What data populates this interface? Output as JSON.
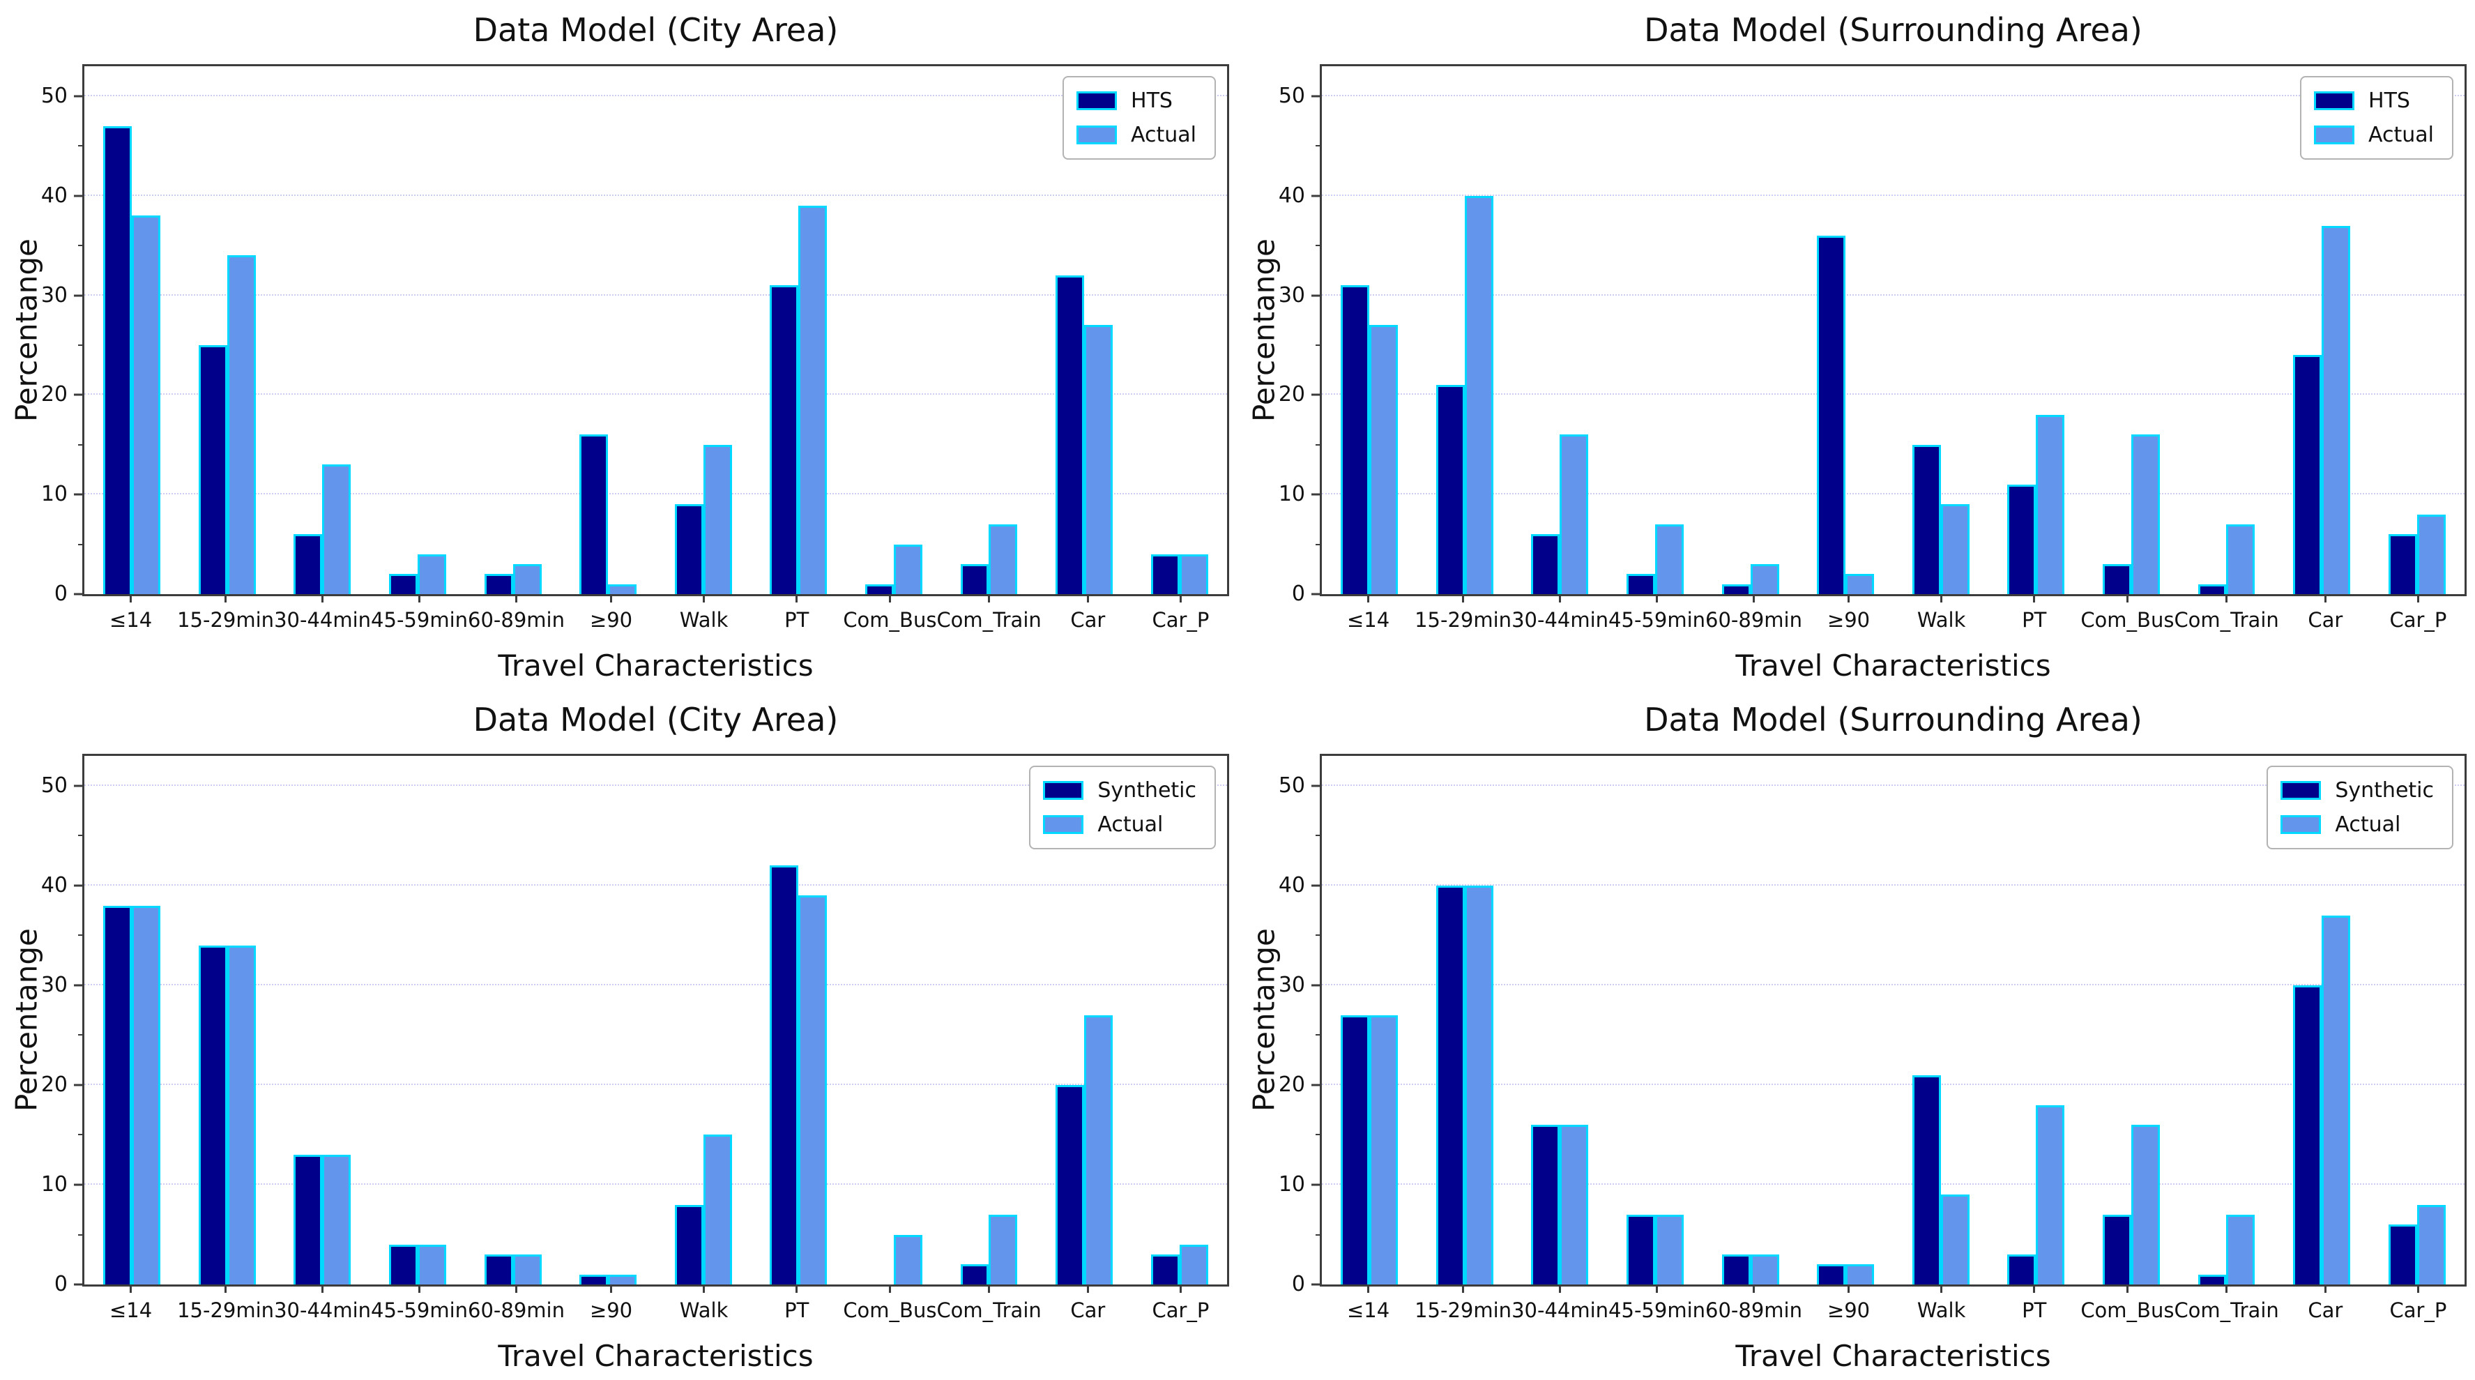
{
  "figure": {
    "background": "#ffffff",
    "bar_edge_color": "#00d9ff",
    "gridline_color": "#cdcdf2",
    "series_colors": {
      "dark": "#00008b",
      "light": "#6495ed"
    }
  },
  "chart_data": [
    {
      "type": "bar",
      "title": "Data Model (City Area)",
      "xlabel": "Travel Characteristics",
      "ylabel": "Percentange",
      "ylim": [
        0,
        53
      ],
      "yticks": [
        0,
        10,
        20,
        30,
        40,
        50
      ],
      "grid": "horizontal-dotted",
      "legend_position": "upper-right",
      "categories": [
        "≤14",
        "15-29min",
        "30-44min",
        "45-59min",
        "60-89min",
        "≥90",
        "Walk",
        "PT",
        "Com_Bus",
        "Com_Train",
        "Car",
        "Car_P"
      ],
      "series": [
        {
          "name": "HTS",
          "color": "#00008b",
          "values": [
            47,
            25,
            6,
            2,
            2,
            16,
            9,
            31,
            1,
            3,
            32,
            4
          ]
        },
        {
          "name": "Actual",
          "color": "#6495ed",
          "values": [
            38,
            34,
            13,
            4,
            3,
            1,
            15,
            39,
            5,
            7,
            27,
            4
          ]
        }
      ]
    },
    {
      "type": "bar",
      "title": "Data Model (Surrounding Area)",
      "xlabel": "Travel Characteristics",
      "ylabel": "Percentange",
      "ylim": [
        0,
        53
      ],
      "yticks": [
        0,
        10,
        20,
        30,
        40,
        50
      ],
      "grid": "horizontal-dotted",
      "legend_position": "upper-right",
      "categories": [
        "≤14",
        "15-29min",
        "30-44min",
        "45-59min",
        "60-89min",
        "≥90",
        "Walk",
        "PT",
        "Com_Bus",
        "Com_Train",
        "Car",
        "Car_P"
      ],
      "series": [
        {
          "name": "HTS",
          "color": "#00008b",
          "values": [
            31,
            21,
            6,
            2,
            1,
            36,
            15,
            11,
            3,
            1,
            24,
            6
          ]
        },
        {
          "name": "Actual",
          "color": "#6495ed",
          "values": [
            27,
            40,
            16,
            7,
            3,
            2,
            9,
            18,
            16,
            7,
            37,
            8
          ]
        }
      ]
    },
    {
      "type": "bar",
      "title": "Data Model (City Area)",
      "xlabel": "Travel Characteristics",
      "ylabel": "Percentange",
      "ylim": [
        0,
        53
      ],
      "yticks": [
        0,
        10,
        20,
        30,
        40,
        50
      ],
      "grid": "horizontal-dotted",
      "legend_position": "upper-right",
      "categories": [
        "≤14",
        "15-29min",
        "30-44min",
        "45-59min",
        "60-89min",
        "≥90",
        "Walk",
        "PT",
        "Com_Bus",
        "Com_Train",
        "Car",
        "Car_P"
      ],
      "series": [
        {
          "name": "Synthetic",
          "color": "#00008b",
          "values": [
            38,
            34,
            13,
            4,
            3,
            1,
            8,
            42,
            0,
            2,
            20,
            3
          ]
        },
        {
          "name": "Actual",
          "color": "#6495ed",
          "values": [
            38,
            34,
            13,
            4,
            3,
            1,
            15,
            39,
            5,
            7,
            27,
            4
          ]
        }
      ]
    },
    {
      "type": "bar",
      "title": "Data Model (Surrounding Area)",
      "xlabel": "Travel Characteristics",
      "ylabel": "Percentange",
      "ylim": [
        0,
        53
      ],
      "yticks": [
        0,
        10,
        20,
        30,
        40,
        50
      ],
      "grid": "horizontal-dotted",
      "legend_position": "upper-right",
      "categories": [
        "≤14",
        "15-29min",
        "30-44min",
        "45-59min",
        "60-89min",
        "≥90",
        "Walk",
        "PT",
        "Com_Bus",
        "Com_Train",
        "Car",
        "Car_P"
      ],
      "series": [
        {
          "name": "Synthetic",
          "color": "#00008b",
          "values": [
            27,
            40,
            16,
            7,
            3,
            2,
            21,
            3,
            7,
            1,
            30,
            6
          ]
        },
        {
          "name": "Actual",
          "color": "#6495ed",
          "values": [
            27,
            40,
            16,
            7,
            3,
            2,
            9,
            18,
            16,
            7,
            37,
            8
          ]
        }
      ]
    }
  ]
}
